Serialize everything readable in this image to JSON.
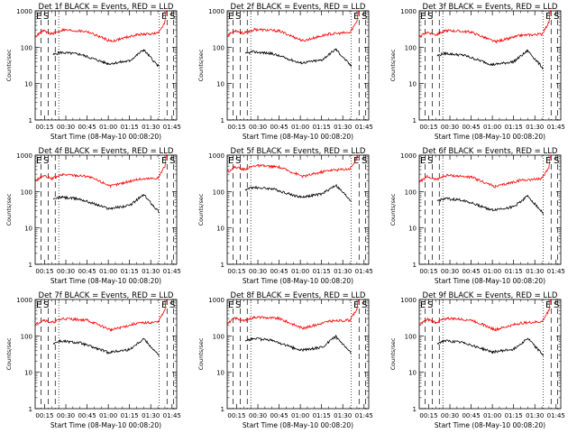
{
  "figure": {
    "xlabel": "Start Time (08-May-10 00:08:20)",
    "ylabel": "Counts/sec",
    "x_ticks": [
      "00:15",
      "00:30",
      "00:45",
      "01:00",
      "01:15",
      "01:30",
      "01:45"
    ],
    "y_ticks": [
      "1",
      "10",
      "100",
      "1000"
    ],
    "colors": {
      "events": "#000000",
      "lld": "#ff0000",
      "axes": "#000000"
    }
  },
  "chart_data": [
    {
      "type": "line",
      "title": "Det 1f BLACK = Events, RED = LLD",
      "x_range_minutes": [
        8.33,
        108.33
      ],
      "y_scale": "log",
      "ylim": [
        1,
        1000
      ],
      "markers": [
        "E",
        "S",
        "E",
        "S"
      ],
      "series": [
        {
          "name": "Events",
          "points": [
            [
              21,
              62
            ],
            [
              26,
              72
            ],
            [
              40,
              64
            ],
            [
              60,
              35
            ],
            [
              75,
              42
            ],
            [
              85,
              85
            ],
            [
              96,
              28
            ]
          ]
        },
        {
          "name": "LLD",
          "points": [
            [
              8.5,
              200
            ],
            [
              14,
              280
            ],
            [
              20,
              230
            ],
            [
              28,
              300
            ],
            [
              45,
              270
            ],
            [
              62,
              145
            ],
            [
              80,
              220
            ],
            [
              95,
              240
            ],
            [
              100,
              500
            ],
            [
              101,
              1000
            ]
          ]
        }
      ]
    },
    {
      "type": "line",
      "title": "Det 2f BLACK = Events, RED = LLD",
      "x_range_minutes": [
        8.33,
        108.33
      ],
      "y_scale": "log",
      "ylim": [
        1,
        1000
      ],
      "markers": [
        "E",
        "S",
        "E",
        "S"
      ],
      "series": [
        {
          "name": "Events",
          "points": [
            [
              21,
              65
            ],
            [
              26,
              75
            ],
            [
              40,
              67
            ],
            [
              60,
              37
            ],
            [
              75,
              44
            ],
            [
              85,
              88
            ],
            [
              96,
              30
            ]
          ]
        },
        {
          "name": "LLD",
          "points": [
            [
              8.5,
              210
            ],
            [
              14,
              290
            ],
            [
              20,
              240
            ],
            [
              28,
              310
            ],
            [
              45,
              280
            ],
            [
              62,
              150
            ],
            [
              80,
              230
            ],
            [
              95,
              250
            ],
            [
              100,
              520
            ],
            [
              101,
              1000
            ]
          ]
        }
      ]
    },
    {
      "type": "line",
      "title": "Det 3f BLACK = Events, RED = LLD",
      "x_range_minutes": [
        8.33,
        108.33
      ],
      "y_scale": "log",
      "ylim": [
        1,
        1000
      ],
      "markers": [
        "E",
        "S",
        "E",
        "S"
      ],
      "series": [
        {
          "name": "Events",
          "points": [
            [
              21,
              58
            ],
            [
              26,
              68
            ],
            [
              40,
              60
            ],
            [
              60,
              33
            ],
            [
              75,
              40
            ],
            [
              85,
              80
            ],
            [
              96,
              26
            ]
          ]
        },
        {
          "name": "LLD",
          "points": [
            [
              8.5,
              190
            ],
            [
              14,
              260
            ],
            [
              20,
              220
            ],
            [
              28,
              290
            ],
            [
              45,
              260
            ],
            [
              62,
              140
            ],
            [
              80,
              210
            ],
            [
              95,
              230
            ],
            [
              100,
              480
            ],
            [
              101,
              1000
            ]
          ]
        }
      ]
    },
    {
      "type": "line",
      "title": "Det 4f BLACK = Events, RED = LLD",
      "x_range_minutes": [
        8.33,
        108.33
      ],
      "y_scale": "log",
      "ylim": [
        1,
        1000
      ],
      "markers": [
        "E",
        "S",
        "E",
        "S"
      ],
      "series": [
        {
          "name": "Events",
          "points": [
            [
              21,
              60
            ],
            [
              26,
              70
            ],
            [
              40,
              62
            ],
            [
              60,
              34
            ],
            [
              75,
              41
            ],
            [
              85,
              82
            ],
            [
              96,
              27
            ]
          ]
        },
        {
          "name": "LLD",
          "points": [
            [
              8.5,
              195
            ],
            [
              14,
              270
            ],
            [
              20,
              225
            ],
            [
              28,
              295
            ],
            [
              45,
              265
            ],
            [
              62,
              142
            ],
            [
              80,
              215
            ],
            [
              95,
              235
            ],
            [
              100,
              490
            ],
            [
              101,
              1000
            ]
          ]
        }
      ]
    },
    {
      "type": "line",
      "title": "Det 5f BLACK = Events, RED = LLD",
      "x_range_minutes": [
        8.33,
        108.33
      ],
      "y_scale": "log",
      "ylim": [
        1,
        1000
      ],
      "markers": [
        "E",
        "S",
        "E",
        "S"
      ],
      "series": [
        {
          "name": "Events",
          "points": [
            [
              21,
              110
            ],
            [
              26,
              130
            ],
            [
              40,
              120
            ],
            [
              60,
              70
            ],
            [
              75,
              85
            ],
            [
              85,
              150
            ],
            [
              96,
              55
            ]
          ]
        },
        {
          "name": "LLD",
          "points": [
            [
              8.5,
              350
            ],
            [
              14,
              480
            ],
            [
              20,
              400
            ],
            [
              28,
              520
            ],
            [
              45,
              470
            ],
            [
              62,
              260
            ],
            [
              80,
              380
            ],
            [
              95,
              420
            ],
            [
              100,
              800
            ],
            [
              101,
              1000
            ]
          ]
        }
      ]
    },
    {
      "type": "line",
      "title": "Det 6f BLACK = Events, RED = LLD",
      "x_range_minutes": [
        8.33,
        108.33
      ],
      "y_scale": "log",
      "ylim": [
        1,
        1000
      ],
      "markers": [
        "E",
        "S",
        "E",
        "S"
      ],
      "series": [
        {
          "name": "Events",
          "points": [
            [
              21,
              55
            ],
            [
              26,
              64
            ],
            [
              40,
              57
            ],
            [
              60,
              31
            ],
            [
              75,
              38
            ],
            [
              85,
              76
            ],
            [
              96,
              25
            ]
          ]
        },
        {
          "name": "LLD",
          "points": [
            [
              8.5,
              185
            ],
            [
              14,
              255
            ],
            [
              20,
              215
            ],
            [
              28,
              280
            ],
            [
              45,
              250
            ],
            [
              62,
              135
            ],
            [
              80,
              205
            ],
            [
              95,
              225
            ],
            [
              100,
              470
            ],
            [
              101,
              1000
            ]
          ]
        }
      ]
    },
    {
      "type": "line",
      "title": "Det 7f BLACK = Events, RED = LLD",
      "x_range_minutes": [
        8.33,
        108.33
      ],
      "y_scale": "log",
      "ylim": [
        1,
        1000
      ],
      "markers": [
        "E",
        "S",
        "E",
        "S"
      ],
      "series": [
        {
          "name": "Events",
          "points": [
            [
              21,
              62
            ],
            [
              26,
              72
            ],
            [
              40,
              64
            ],
            [
              60,
              35
            ],
            [
              75,
              42
            ],
            [
              85,
              84
            ],
            [
              96,
              28
            ]
          ]
        },
        {
          "name": "LLD",
          "points": [
            [
              8.5,
              200
            ],
            [
              14,
              280
            ],
            [
              20,
              230
            ],
            [
              28,
              300
            ],
            [
              45,
              270
            ],
            [
              62,
              145
            ],
            [
              80,
              220
            ],
            [
              95,
              240
            ],
            [
              100,
              500
            ],
            [
              101,
              1000
            ]
          ]
        }
      ]
    },
    {
      "type": "line",
      "title": "Det 8f BLACK = Events, RED = LLD",
      "x_range_minutes": [
        8.33,
        108.33
      ],
      "y_scale": "log",
      "ylim": [
        1,
        1000
      ],
      "markers": [
        "E",
        "S",
        "E",
        "S"
      ],
      "series": [
        {
          "name": "Events",
          "points": [
            [
              21,
              72
            ],
            [
              26,
              85
            ],
            [
              40,
              75
            ],
            [
              60,
              40
            ],
            [
              75,
              48
            ],
            [
              85,
              95
            ],
            [
              96,
              32
            ]
          ]
        },
        {
          "name": "LLD",
          "points": [
            [
              8.5,
              220
            ],
            [
              14,
              310
            ],
            [
              20,
              260
            ],
            [
              28,
              330
            ],
            [
              45,
              300
            ],
            [
              62,
              160
            ],
            [
              80,
              250
            ],
            [
              95,
              270
            ],
            [
              100,
              540
            ],
            [
              101,
              1000
            ]
          ]
        }
      ]
    },
    {
      "type": "line",
      "title": "Det 9f BLACK = Events, RED = LLD",
      "x_range_minutes": [
        8.33,
        108.33
      ],
      "y_scale": "log",
      "ylim": [
        1,
        1000
      ],
      "markers": [
        "E",
        "S",
        "E",
        "S"
      ],
      "series": [
        {
          "name": "Events",
          "points": [
            [
              21,
              63
            ],
            [
              26,
              73
            ],
            [
              40,
              65
            ],
            [
              60,
              36
            ],
            [
              75,
              43
            ],
            [
              85,
              86
            ],
            [
              96,
              29
            ]
          ]
        },
        {
          "name": "LLD",
          "points": [
            [
              8.5,
              205
            ],
            [
              14,
              285
            ],
            [
              20,
              235
            ],
            [
              28,
              305
            ],
            [
              45,
              275
            ],
            [
              62,
              148
            ],
            [
              80,
              225
            ],
            [
              95,
              245
            ],
            [
              100,
              510
            ],
            [
              101,
              1000
            ]
          ]
        }
      ]
    }
  ]
}
